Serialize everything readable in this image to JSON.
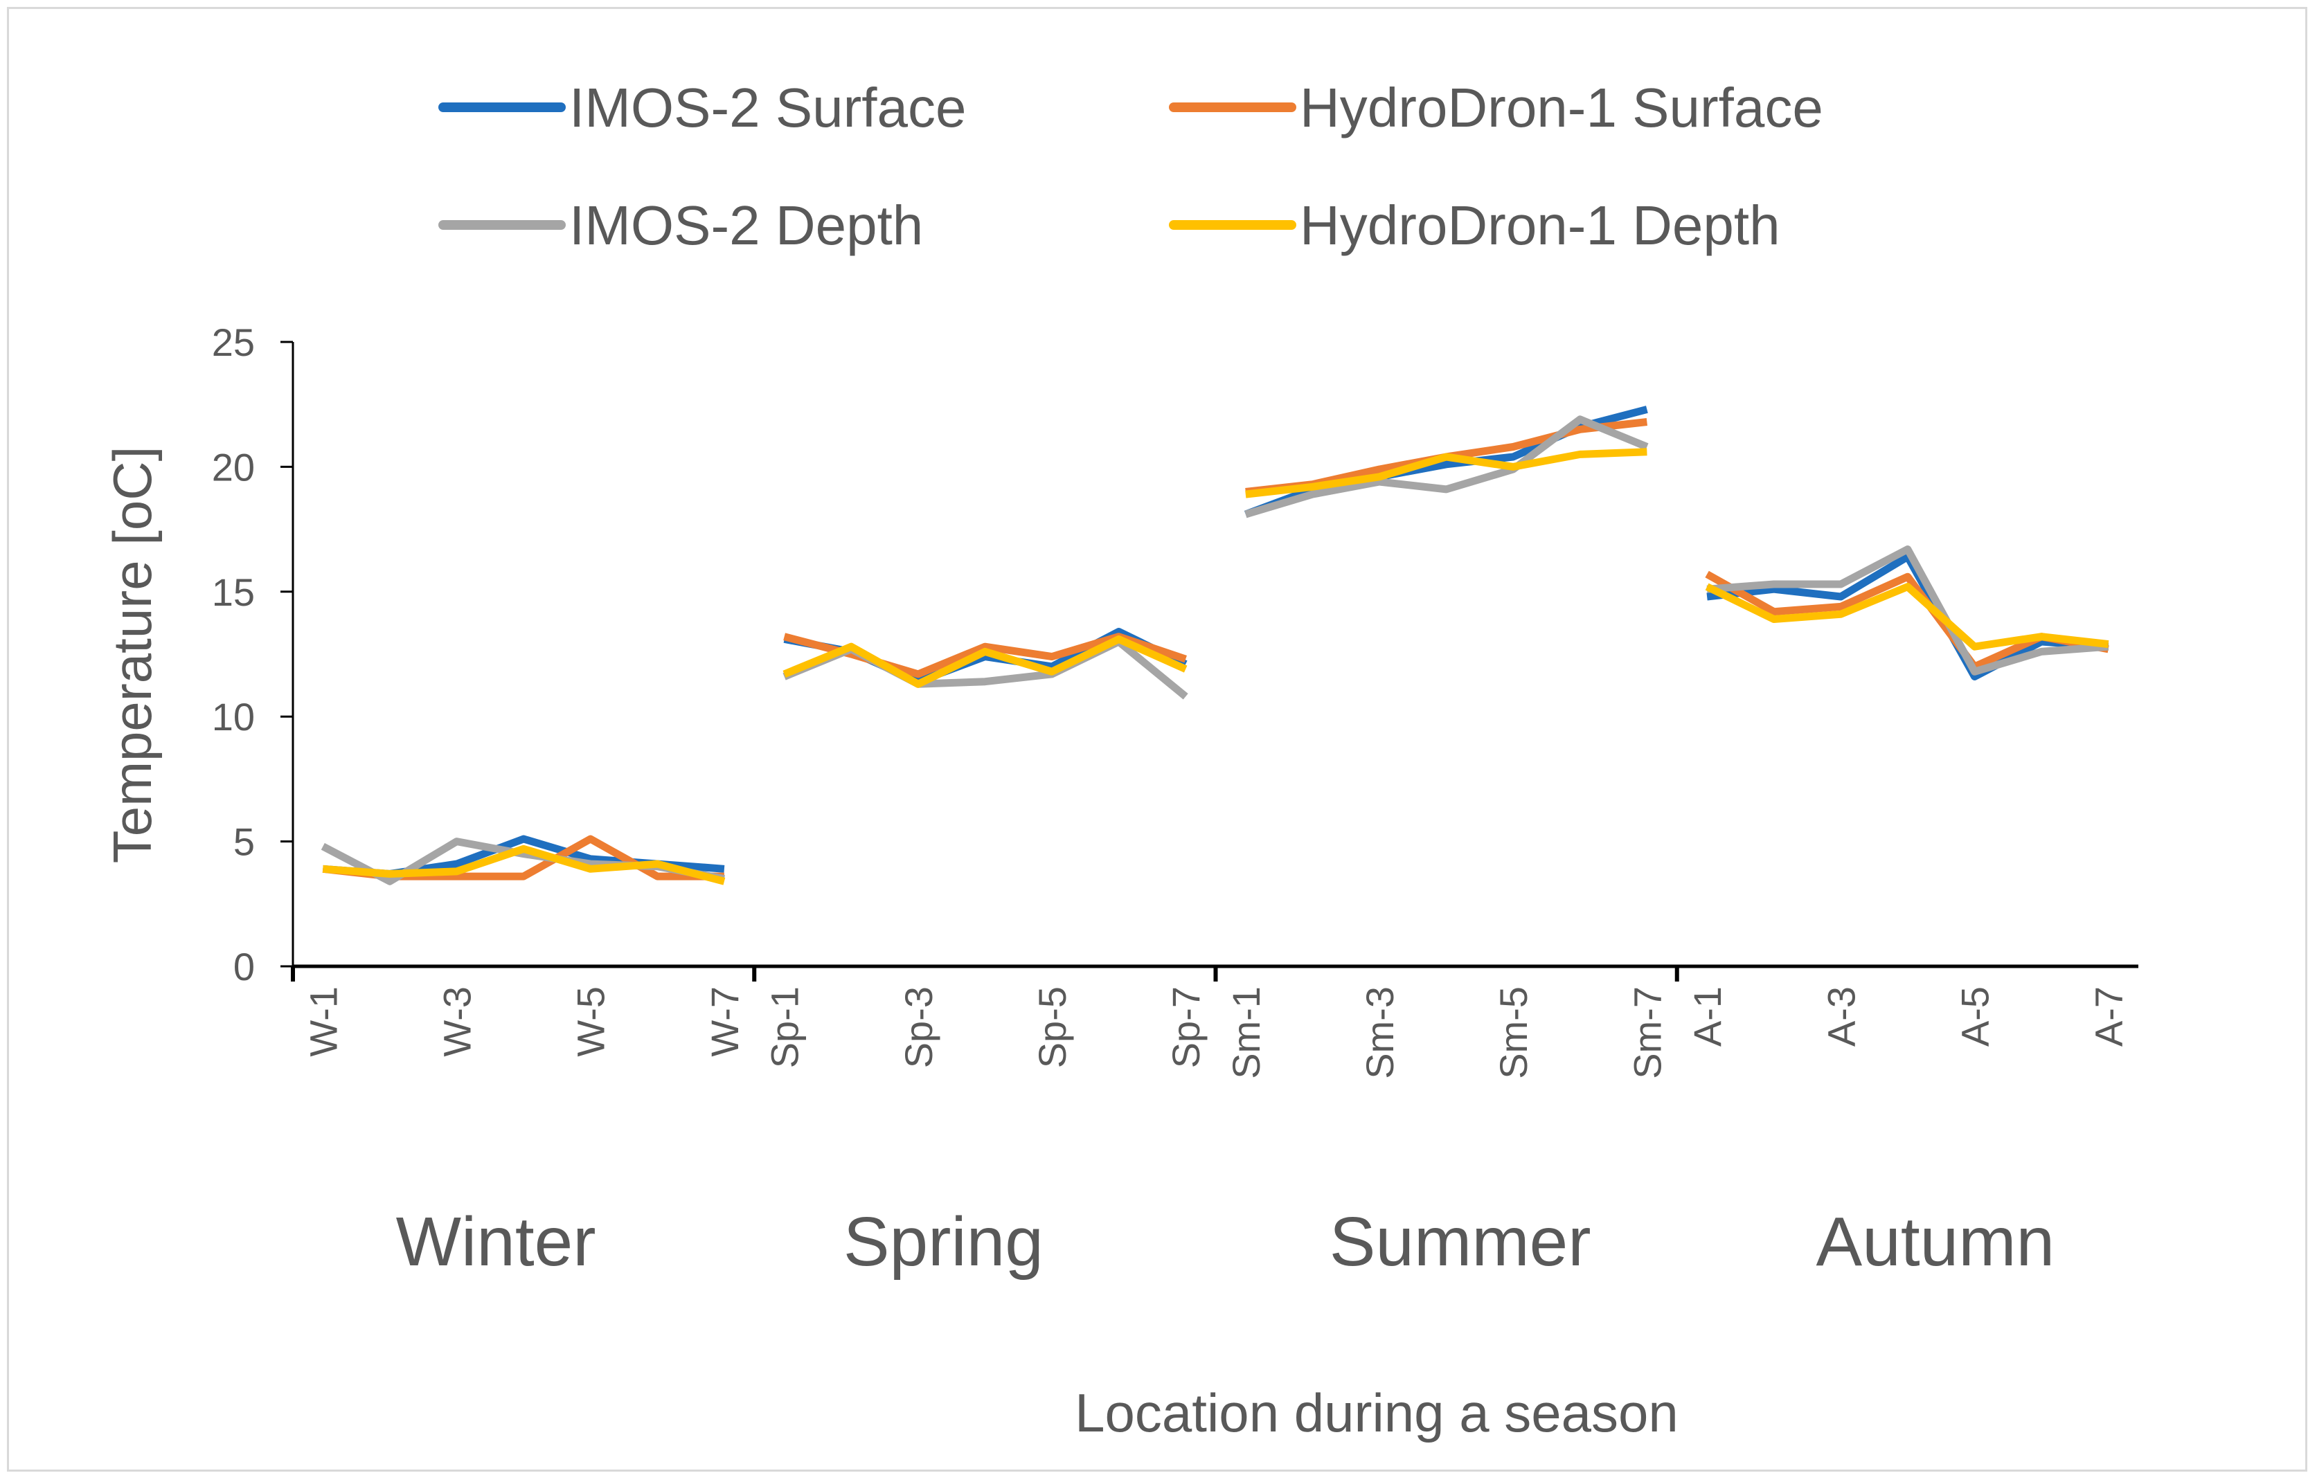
{
  "chart_data": {
    "type": "line",
    "title": "",
    "xlabel": "Location during a season",
    "ylabel": "Temperature [oC]",
    "ylim": [
      0,
      25
    ],
    "yticks": [
      0,
      5,
      10,
      15,
      20,
      25
    ],
    "grid": false,
    "legend_position": "top",
    "seasons": [
      {
        "name": "Winter",
        "tick_labels": [
          "W-1",
          "W-3",
          "W-5",
          "W-7"
        ],
        "categories": [
          "W-1",
          "W-2",
          "W-3",
          "W-4",
          "W-5",
          "W-6",
          "W-7"
        ]
      },
      {
        "name": "Spring",
        "tick_labels": [
          "Sp-1",
          "Sp-3",
          "Sp-5",
          "Sp-7"
        ],
        "categories": [
          "Sp-1",
          "Sp-2",
          "Sp-3",
          "Sp-4",
          "Sp-5",
          "Sp-6",
          "Sp-7"
        ]
      },
      {
        "name": "Summer",
        "tick_labels": [
          "Sm-1",
          "Sm-3",
          "Sm-5",
          "Sm-7"
        ],
        "categories": [
          "Sm-1",
          "Sm-2",
          "Sm-3",
          "Sm-4",
          "Sm-5",
          "Sm-6",
          "Sm-7"
        ]
      },
      {
        "name": "Autumn",
        "tick_labels": [
          "A-1",
          "A-3",
          "A-5",
          "A-7"
        ],
        "categories": [
          "A-1",
          "A-2",
          "A-3",
          "A-4",
          "A-5",
          "A-6",
          "A-7"
        ]
      }
    ],
    "series": [
      {
        "name": "IMOS-2 Surface",
        "color": "#1f6fbf",
        "values": [
          [
            3.9,
            3.7,
            4.1,
            5.1,
            4.3,
            4.1,
            3.9
          ],
          [
            13.1,
            12.6,
            11.4,
            12.4,
            12.0,
            13.4,
            12.1
          ],
          [
            18.1,
            19.1,
            19.6,
            20.1,
            20.4,
            21.6,
            22.3
          ],
          [
            14.8,
            15.1,
            14.8,
            16.4,
            11.6,
            13.0,
            12.8
          ]
        ]
      },
      {
        "name": "HydroDron-1 Surface",
        "color": "#ed7d31",
        "values": [
          [
            3.9,
            3.6,
            3.6,
            3.6,
            5.1,
            3.6,
            3.6
          ],
          [
            13.2,
            12.5,
            11.7,
            12.8,
            12.4,
            13.2,
            12.3
          ],
          [
            19.0,
            19.3,
            19.9,
            20.4,
            20.8,
            21.5,
            21.8
          ],
          [
            15.7,
            14.2,
            14.4,
            15.6,
            12.0,
            13.2,
            12.7
          ]
        ]
      },
      {
        "name": "IMOS-2 Depth",
        "color": "#a5a5a5",
        "values": [
          [
            4.8,
            3.4,
            5.0,
            4.5,
            4.1,
            4.0,
            3.5
          ],
          [
            11.6,
            12.7,
            11.3,
            11.4,
            11.7,
            13.0,
            10.8
          ],
          [
            18.1,
            18.9,
            19.4,
            19.1,
            19.9,
            21.9,
            20.8
          ],
          [
            15.1,
            15.3,
            15.3,
            16.7,
            11.8,
            12.6,
            12.8
          ]
        ]
      },
      {
        "name": "HydroDron-1 Depth",
        "color": "#ffc000",
        "values": [
          [
            3.9,
            3.7,
            3.8,
            4.7,
            3.9,
            4.1,
            3.4
          ],
          [
            11.7,
            12.8,
            11.3,
            12.6,
            11.8,
            13.1,
            11.9
          ],
          [
            18.9,
            19.2,
            19.6,
            20.4,
            20.0,
            20.5,
            20.6
          ],
          [
            15.2,
            13.9,
            14.1,
            15.2,
            12.8,
            13.2,
            12.9
          ]
        ]
      }
    ]
  }
}
